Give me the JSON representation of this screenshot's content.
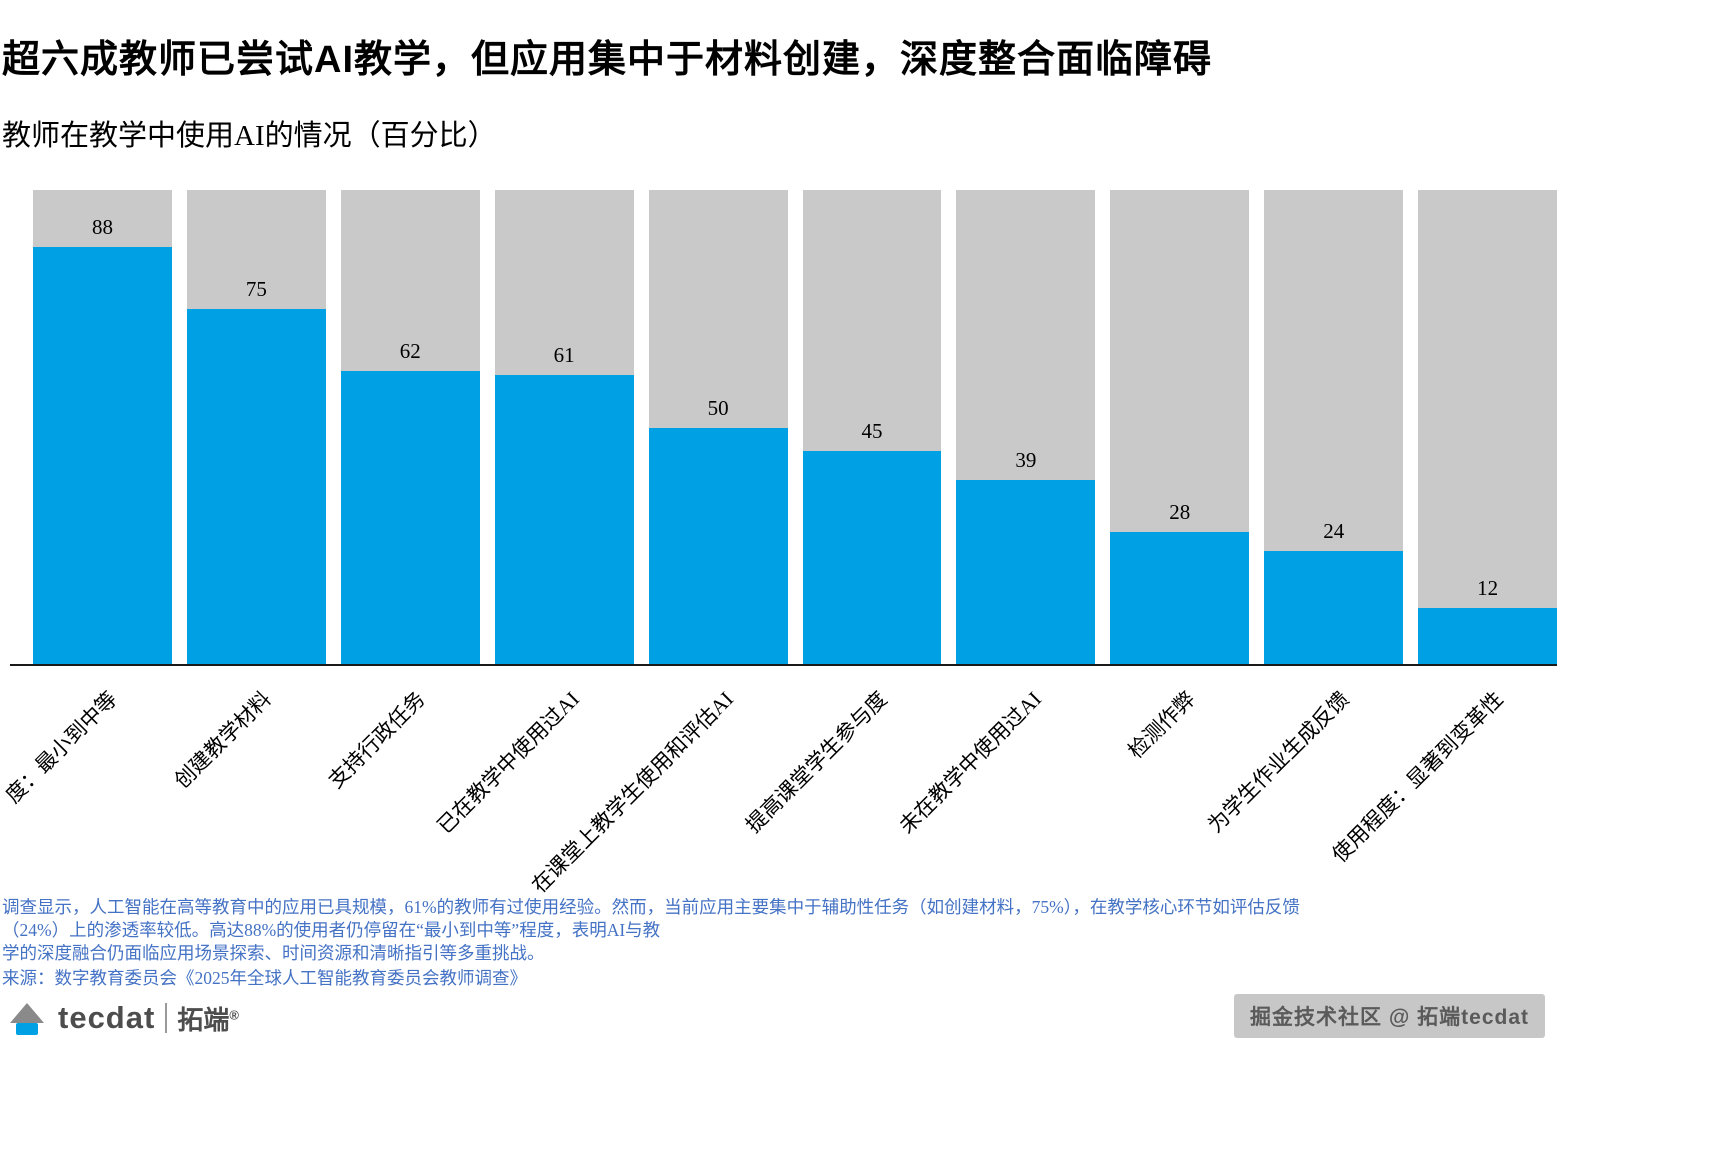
{
  "title": "超六成教师已尝试AI教学，但应用集中于材料创建，深度整合面临障碍",
  "subtitle": "教师在教学中使用AI的情况（百分比）",
  "chart_data": {
    "type": "bar",
    "title": "教师在教学中使用AI的情况（百分比）",
    "categories": [
      "度：最小到中等",
      "创建教学材料",
      "支持行政任务",
      "已在教学中使用过AI",
      "在课堂上教学生使用和评估AI",
      "提高课堂学生参与度",
      "未在教学中使用过AI",
      "检测作弊",
      "为学生作业生成反馈",
      "使用程度：显著到变革性"
    ],
    "values": [
      88,
      75,
      62,
      61,
      50,
      45,
      39,
      28,
      24,
      12
    ],
    "ylim": [
      0,
      100
    ],
    "bar_color": "#00a1e4",
    "track_color": "#c9c9c9",
    "legend": "none",
    "grid": false
  },
  "footer": {
    "lines": [
      "调查显示，人工智能在高等教育中的应用已具规模，61%的教师有过使用经验。然而，当前应用主要集中于辅助性任务（如创建材料，75%），在教学核心环节如评估反馈",
      "（24%）上的渗透率较低。高达88%的使用者仍停留在“最小到中等”程度，表明AI与教",
      "学的深度融合仍面临应用场景探索、时间资源和清晰指引等多重挑战。",
      "来源：数字教育委员会《2025年全球人工智能教育委员会教师调查》"
    ]
  },
  "branding": {
    "logo_text": "tecdat",
    "logo_suffix": "拓端",
    "logo_reg": "®",
    "watermark": "掘金技术社区 @ 拓端tecdat"
  }
}
